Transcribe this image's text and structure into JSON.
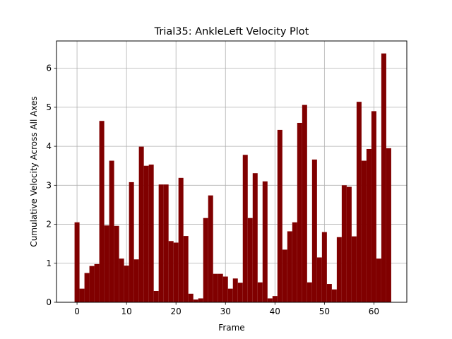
{
  "chart_data": {
    "type": "bar",
    "title": "Trial35: AnkleLeft Velocity Plot",
    "xlabel": "Frame",
    "ylabel": "Cumulative Velocity Across All Axes",
    "xlim": [
      -4.15,
      66.65
    ],
    "ylim": [
      0,
      6.7
    ],
    "xticks": [
      0,
      10,
      20,
      30,
      40,
      50,
      60
    ],
    "yticks": [
      0,
      1,
      2,
      3,
      4,
      5,
      6
    ],
    "grid": true,
    "bar_color": "#800000",
    "bar_width": 1.0,
    "x": [
      0,
      1,
      2,
      3,
      4,
      5,
      6,
      7,
      8,
      9,
      10,
      11,
      12,
      13,
      14,
      15,
      16,
      17,
      18,
      19,
      20,
      21,
      22,
      23,
      24,
      25,
      26,
      27,
      28,
      29,
      30,
      31,
      32,
      33,
      34,
      35,
      36,
      37,
      38,
      39,
      40,
      41,
      42,
      43,
      44,
      45,
      46,
      47,
      48,
      49,
      50,
      51,
      52,
      53,
      54,
      55,
      56,
      57,
      58,
      59,
      60,
      61,
      62,
      63
    ],
    "values": [
      2.05,
      0.35,
      0.75,
      0.93,
      0.98,
      4.65,
      1.97,
      3.63,
      1.96,
      1.12,
      0.94,
      3.08,
      1.1,
      3.99,
      3.5,
      3.53,
      0.29,
      3.02,
      3.02,
      1.57,
      1.53,
      3.19,
      1.7,
      0.22,
      0.07,
      0.1,
      2.16,
      2.74,
      0.73,
      0.73,
      0.66,
      0.35,
      0.61,
      0.5,
      3.78,
      2.16,
      3.31,
      0.51,
      3.1,
      0.1,
      0.16,
      4.42,
      1.35,
      1.82,
      2.05,
      4.6,
      5.06,
      0.51,
      3.66,
      1.15,
      1.8,
      0.47,
      0.33,
      1.67,
      3.0,
      2.96,
      1.69,
      5.14,
      3.63,
      3.93,
      4.9,
      1.12,
      6.38,
      3.95
    ]
  }
}
